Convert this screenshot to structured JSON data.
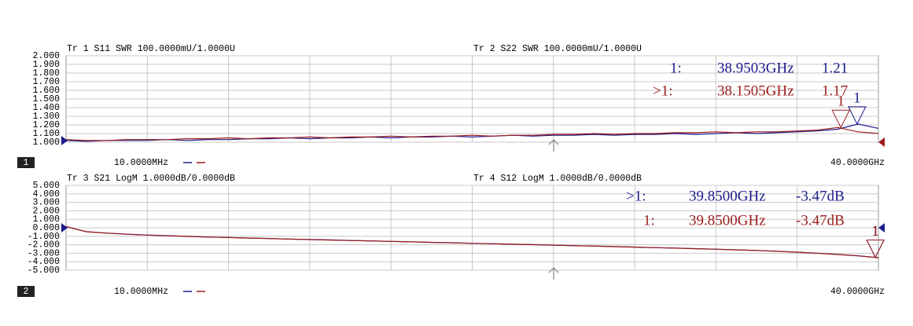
{
  "chart_data": [
    {
      "type": "line",
      "channel": "1",
      "x": [
        0.01,
        1,
        2,
        3,
        4,
        5,
        6,
        7,
        8,
        9,
        10,
        11,
        12,
        13,
        14,
        15,
        16,
        17,
        18,
        19,
        20,
        21,
        22,
        23,
        24,
        25,
        26,
        27,
        28,
        29,
        30,
        31,
        32,
        33,
        34,
        35,
        36,
        37,
        38,
        39,
        40
      ],
      "xlim": [
        0.01,
        40
      ],
      "xticks": [
        {
          "value": 0.01,
          "label": "10.0000MHz"
        },
        {
          "value": 40,
          "label": "40.0000GHz"
        }
      ],
      "ylim": [
        1,
        2
      ],
      "yticks": [
        {
          "value": 1,
          "label": "1.000"
        },
        {
          "value": 1.1,
          "label": "1.100"
        },
        {
          "value": 1.2,
          "label": "1.200"
        },
        {
          "value": 1.3,
          "label": "1.300"
        },
        {
          "value": 1.4,
          "label": "1.400"
        },
        {
          "value": 1.5,
          "label": "1.500"
        },
        {
          "value": 1.6,
          "label": "1.600"
        },
        {
          "value": 1.7,
          "label": "1.700"
        },
        {
          "value": 1.8,
          "label": "1.800"
        },
        {
          "value": 1.9,
          "label": "1.900"
        },
        {
          "value": 2,
          "label": "2.000"
        }
      ],
      "grid": true,
      "series": [
        {
          "name": "Tr 1  S11 SWR 100.0000mU/1.0000U",
          "color": "#1c1c8c",
          "values": [
            1.02,
            1.01,
            1.02,
            1.02,
            1.02,
            1.03,
            1.02,
            1.03,
            1.03,
            1.04,
            1.04,
            1.05,
            1.04,
            1.05,
            1.05,
            1.06,
            1.05,
            1.06,
            1.06,
            1.07,
            1.06,
            1.07,
            1.08,
            1.07,
            1.08,
            1.08,
            1.09,
            1.08,
            1.09,
            1.09,
            1.1,
            1.09,
            1.1,
            1.11,
            1.1,
            1.11,
            1.12,
            1.13,
            1.15,
            1.21,
            1.16
          ],
          "marker": {
            "name": "1:",
            "tag": "1",
            "x": 38.9503,
            "x_label": "38.9503GHz",
            "y": 1.21,
            "y_label": "1.21"
          }
        },
        {
          "name": "Tr 2  S22 SWR 100.0000mU/1.0000U",
          "color": "#9c1c1c",
          "values": [
            1.03,
            1.02,
            1.02,
            1.03,
            1.03,
            1.03,
            1.04,
            1.04,
            1.05,
            1.04,
            1.05,
            1.05,
            1.06,
            1.05,
            1.06,
            1.06,
            1.07,
            1.06,
            1.07,
            1.07,
            1.08,
            1.07,
            1.08,
            1.08,
            1.09,
            1.09,
            1.1,
            1.09,
            1.1,
            1.1,
            1.11,
            1.11,
            1.12,
            1.11,
            1.12,
            1.12,
            1.13,
            1.14,
            1.17,
            1.12,
            1.1
          ],
          "marker": {
            "name": ">1:",
            "tag": "1",
            "x": 38.1505,
            "x_label": "38.1505GHz",
            "y": 1.17,
            "y_label": "1.17"
          }
        }
      ]
    },
    {
      "type": "line",
      "channel": "2",
      "x": [
        0.01,
        1,
        2,
        3,
        4,
        5,
        6,
        7,
        8,
        9,
        10,
        11,
        12,
        13,
        14,
        15,
        16,
        17,
        18,
        19,
        20,
        21,
        22,
        23,
        24,
        25,
        26,
        27,
        28,
        29,
        30,
        31,
        32,
        33,
        34,
        35,
        36,
        37,
        38,
        39,
        40
      ],
      "xlim": [
        0.01,
        40
      ],
      "xticks": [
        {
          "value": 0.01,
          "label": "10.0000MHz"
        },
        {
          "value": 40,
          "label": "40.0000GHz"
        }
      ],
      "ylim": [
        -5,
        5
      ],
      "yticks": [
        {
          "value": -5,
          "label": "-5.000"
        },
        {
          "value": -4,
          "label": "-4.000"
        },
        {
          "value": -3,
          "label": "-3.000"
        },
        {
          "value": -2,
          "label": "-2.000"
        },
        {
          "value": -1,
          "label": "-1.000"
        },
        {
          "value": 0,
          "label": "0.000"
        },
        {
          "value": 1,
          "label": "1.000"
        },
        {
          "value": 2,
          "label": "2.000"
        },
        {
          "value": 3,
          "label": "3.000"
        },
        {
          "value": 4,
          "label": "4.000"
        },
        {
          "value": 5,
          "label": "5.000"
        }
      ],
      "grid": true,
      "series": [
        {
          "name": "Tr 3  S21 LogM 1.0000dB/0.0000dB",
          "color": "#1c1c8c",
          "values": [
            0.15,
            -0.45,
            -0.62,
            -0.75,
            -0.85,
            -0.93,
            -1.01,
            -1.08,
            -1.14,
            -1.2,
            -1.26,
            -1.32,
            -1.38,
            -1.43,
            -1.49,
            -1.54,
            -1.6,
            -1.65,
            -1.71,
            -1.76,
            -1.82,
            -1.87,
            -1.93,
            -1.98,
            -2.04,
            -2.1,
            -2.15,
            -2.21,
            -2.27,
            -2.33,
            -2.39,
            -2.45,
            -2.52,
            -2.59,
            -2.67,
            -2.76,
            -2.87,
            -2.99,
            -3.14,
            -3.3,
            -3.52
          ],
          "marker": {
            "name": ">1:",
            "tag": "1",
            "x": 39.85,
            "x_label": "39.8500GHz",
            "y": -3.47,
            "y_label": "-3.47dB"
          }
        },
        {
          "name": "Tr 4  S12 LogM 1.0000dB/0.0000dB",
          "color": "#9c1c1c",
          "values": [
            0.14,
            -0.46,
            -0.63,
            -0.76,
            -0.86,
            -0.94,
            -1.02,
            -1.09,
            -1.15,
            -1.21,
            -1.27,
            -1.33,
            -1.39,
            -1.44,
            -1.5,
            -1.55,
            -1.61,
            -1.66,
            -1.72,
            -1.77,
            -1.83,
            -1.88,
            -1.94,
            -1.99,
            -2.05,
            -2.11,
            -2.16,
            -2.22,
            -2.28,
            -2.34,
            -2.4,
            -2.46,
            -2.53,
            -2.6,
            -2.68,
            -2.77,
            -2.88,
            -3.0,
            -3.15,
            -3.31,
            -3.53
          ],
          "marker": {
            "name": "1:",
            "tag": "1",
            "x": 39.85,
            "x_label": "39.8500GHz",
            "y": -3.47,
            "y_label": "-3.47dB"
          }
        }
      ]
    }
  ]
}
